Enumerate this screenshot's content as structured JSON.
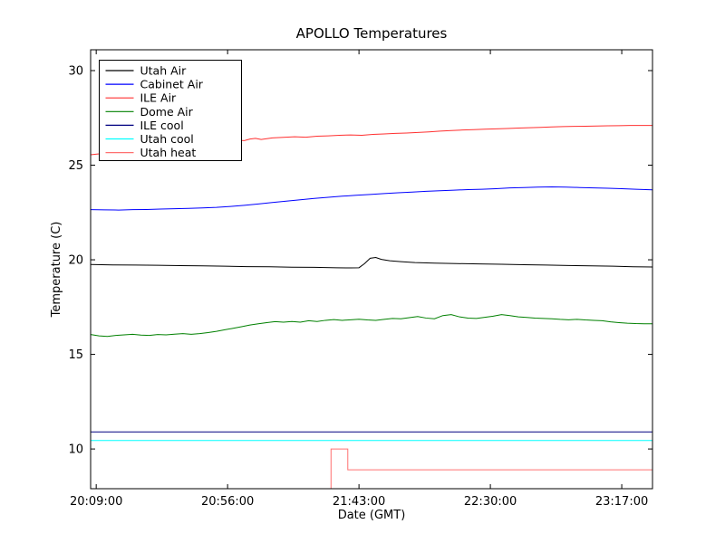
{
  "figure": {
    "background": "#ffffff",
    "border_color": "#000000"
  },
  "chart_data": {
    "type": "line",
    "title": "APOLLO Temperatures",
    "xlabel": "Date (GMT)",
    "ylabel": "Temperature (C)",
    "x_unit": "minutes since 20:00:00 GMT",
    "xlim": [
      7,
      208
    ],
    "ylim": [
      7.9,
      31.1
    ],
    "grid": false,
    "legend_position": "upper left",
    "x_ticks": [
      {
        "value": 9,
        "label": "20:09:00"
      },
      {
        "value": 56,
        "label": "20:56:00"
      },
      {
        "value": 103,
        "label": "21:43:00"
      },
      {
        "value": 150,
        "label": "22:30:00"
      },
      {
        "value": 197,
        "label": "23:17:00"
      }
    ],
    "y_ticks": [
      {
        "value": 10,
        "label": "10"
      },
      {
        "value": 15,
        "label": "15"
      },
      {
        "value": 20,
        "label": "20"
      },
      {
        "value": 25,
        "label": "25"
      },
      {
        "value": 30,
        "label": "30"
      }
    ],
    "series": [
      {
        "name": "Utah Air",
        "color": "#000000",
        "points": [
          [
            7,
            19.75
          ],
          [
            15,
            19.73
          ],
          [
            23,
            19.72
          ],
          [
            31,
            19.71
          ],
          [
            39,
            19.69
          ],
          [
            47,
            19.68
          ],
          [
            55,
            19.66
          ],
          [
            63,
            19.64
          ],
          [
            71,
            19.63
          ],
          [
            79,
            19.61
          ],
          [
            87,
            19.6
          ],
          [
            95,
            19.58
          ],
          [
            100,
            19.57
          ],
          [
            103,
            19.58
          ],
          [
            105,
            19.8
          ],
          [
            107,
            20.08
          ],
          [
            109,
            20.12
          ],
          [
            111,
            20.02
          ],
          [
            114,
            19.95
          ],
          [
            118,
            19.9
          ],
          [
            123,
            19.85
          ],
          [
            130,
            19.82
          ],
          [
            138,
            19.8
          ],
          [
            146,
            19.78
          ],
          [
            154,
            19.76
          ],
          [
            162,
            19.74
          ],
          [
            170,
            19.72
          ],
          [
            178,
            19.7
          ],
          [
            186,
            19.68
          ],
          [
            194,
            19.66
          ],
          [
            201,
            19.63
          ],
          [
            208,
            19.62
          ]
        ]
      },
      {
        "name": "Cabinet Air",
        "color": "#0000ff",
        "points": [
          [
            7,
            22.65
          ],
          [
            12,
            22.64
          ],
          [
            17,
            22.63
          ],
          [
            22,
            22.65
          ],
          [
            27,
            22.66
          ],
          [
            32,
            22.68
          ],
          [
            37,
            22.7
          ],
          [
            42,
            22.72
          ],
          [
            47,
            22.74
          ],
          [
            52,
            22.77
          ],
          [
            57,
            22.82
          ],
          [
            62,
            22.88
          ],
          [
            67,
            22.95
          ],
          [
            72,
            23.03
          ],
          [
            77,
            23.1
          ],
          [
            82,
            23.17
          ],
          [
            87,
            23.24
          ],
          [
            92,
            23.3
          ],
          [
            97,
            23.36
          ],
          [
            102,
            23.41
          ],
          [
            107,
            23.45
          ],
          [
            112,
            23.5
          ],
          [
            117,
            23.54
          ],
          [
            122,
            23.58
          ],
          [
            127,
            23.62
          ],
          [
            132,
            23.65
          ],
          [
            137,
            23.68
          ],
          [
            142,
            23.71
          ],
          [
            147,
            23.73
          ],
          [
            152,
            23.76
          ],
          [
            157,
            23.8
          ],
          [
            162,
            23.82
          ],
          [
            167,
            23.84
          ],
          [
            172,
            23.85
          ],
          [
            177,
            23.84
          ],
          [
            182,
            23.82
          ],
          [
            187,
            23.8
          ],
          [
            192,
            23.78
          ],
          [
            197,
            23.76
          ],
          [
            202,
            23.73
          ],
          [
            208,
            23.7
          ]
        ]
      },
      {
        "name": "ILE Air",
        "color": "#ff3030",
        "points": [
          [
            7,
            25.55
          ],
          [
            10,
            25.6
          ],
          [
            14,
            25.72
          ],
          [
            18,
            25.8
          ],
          [
            22,
            25.88
          ],
          [
            26,
            25.95
          ],
          [
            30,
            26.02
          ],
          [
            34,
            26.08
          ],
          [
            38,
            26.12
          ],
          [
            42,
            26.18
          ],
          [
            46,
            26.22
          ],
          [
            50,
            26.27
          ],
          [
            54,
            26.3
          ],
          [
            58,
            26.33
          ],
          [
            62,
            26.3
          ],
          [
            64,
            26.38
          ],
          [
            66,
            26.42
          ],
          [
            68,
            26.36
          ],
          [
            72,
            26.44
          ],
          [
            76,
            26.47
          ],
          [
            80,
            26.5
          ],
          [
            84,
            26.48
          ],
          [
            88,
            26.53
          ],
          [
            92,
            26.55
          ],
          [
            96,
            26.58
          ],
          [
            100,
            26.6
          ],
          [
            104,
            26.58
          ],
          [
            108,
            26.63
          ],
          [
            112,
            26.65
          ],
          [
            116,
            26.68
          ],
          [
            120,
            26.7
          ],
          [
            124,
            26.73
          ],
          [
            128,
            26.76
          ],
          [
            132,
            26.8
          ],
          [
            136,
            26.83
          ],
          [
            140,
            26.86
          ],
          [
            144,
            26.88
          ],
          [
            148,
            26.9
          ],
          [
            152,
            26.92
          ],
          [
            156,
            26.94
          ],
          [
            160,
            26.96
          ],
          [
            164,
            26.98
          ],
          [
            168,
            27.0
          ],
          [
            172,
            27.02
          ],
          [
            176,
            27.04
          ],
          [
            180,
            27.05
          ],
          [
            184,
            27.06
          ],
          [
            188,
            27.07
          ],
          [
            192,
            27.08
          ],
          [
            196,
            27.09
          ],
          [
            200,
            27.1
          ],
          [
            204,
            27.1
          ],
          [
            208,
            27.1
          ]
        ]
      },
      {
        "name": "Dome Air",
        "color": "#008000",
        "points": [
          [
            7,
            16.05
          ],
          [
            10,
            15.98
          ],
          [
            13,
            15.95
          ],
          [
            16,
            16.0
          ],
          [
            19,
            16.03
          ],
          [
            22,
            16.06
          ],
          [
            25,
            16.02
          ],
          [
            28,
            16.0
          ],
          [
            31,
            16.05
          ],
          [
            34,
            16.03
          ],
          [
            37,
            16.07
          ],
          [
            40,
            16.1
          ],
          [
            43,
            16.06
          ],
          [
            46,
            16.1
          ],
          [
            49,
            16.15
          ],
          [
            52,
            16.22
          ],
          [
            55,
            16.3
          ],
          [
            58,
            16.38
          ],
          [
            61,
            16.46
          ],
          [
            64,
            16.55
          ],
          [
            67,
            16.62
          ],
          [
            70,
            16.68
          ],
          [
            73,
            16.73
          ],
          [
            76,
            16.7
          ],
          [
            79,
            16.74
          ],
          [
            82,
            16.7
          ],
          [
            85,
            16.78
          ],
          [
            88,
            16.74
          ],
          [
            91,
            16.8
          ],
          [
            94,
            16.84
          ],
          [
            97,
            16.8
          ],
          [
            100,
            16.83
          ],
          [
            103,
            16.86
          ],
          [
            106,
            16.82
          ],
          [
            109,
            16.8
          ],
          [
            112,
            16.85
          ],
          [
            115,
            16.9
          ],
          [
            118,
            16.88
          ],
          [
            121,
            16.94
          ],
          [
            124,
            17.0
          ],
          [
            127,
            16.92
          ],
          [
            130,
            16.88
          ],
          [
            133,
            17.05
          ],
          [
            136,
            17.1
          ],
          [
            139,
            16.98
          ],
          [
            142,
            16.92
          ],
          [
            145,
            16.9
          ],
          [
            148,
            16.96
          ],
          [
            151,
            17.02
          ],
          [
            154,
            17.1
          ],
          [
            157,
            17.05
          ],
          [
            160,
            16.98
          ],
          [
            163,
            16.95
          ],
          [
            166,
            16.92
          ],
          [
            169,
            16.9
          ],
          [
            172,
            16.88
          ],
          [
            175,
            16.85
          ],
          [
            178,
            16.83
          ],
          [
            181,
            16.85
          ],
          [
            184,
            16.82
          ],
          [
            187,
            16.8
          ],
          [
            190,
            16.78
          ],
          [
            193,
            16.72
          ],
          [
            196,
            16.68
          ],
          [
            199,
            16.65
          ],
          [
            202,
            16.63
          ],
          [
            205,
            16.62
          ],
          [
            208,
            16.62
          ]
        ]
      },
      {
        "name": "ILE cool",
        "color": "#000080",
        "points": [
          [
            7,
            10.9
          ],
          [
            208,
            10.9
          ]
        ]
      },
      {
        "name": "Utah cool",
        "color": "#00ffff",
        "points": [
          [
            7,
            10.45
          ],
          [
            208,
            10.45
          ]
        ]
      },
      {
        "name": "Utah heat",
        "color": "#ff7070",
        "points": [
          [
            93,
            7.9
          ],
          [
            93,
            10.0
          ],
          [
            99,
            10.0
          ],
          [
            99,
            8.9
          ],
          [
            208,
            8.9
          ]
        ]
      }
    ]
  }
}
